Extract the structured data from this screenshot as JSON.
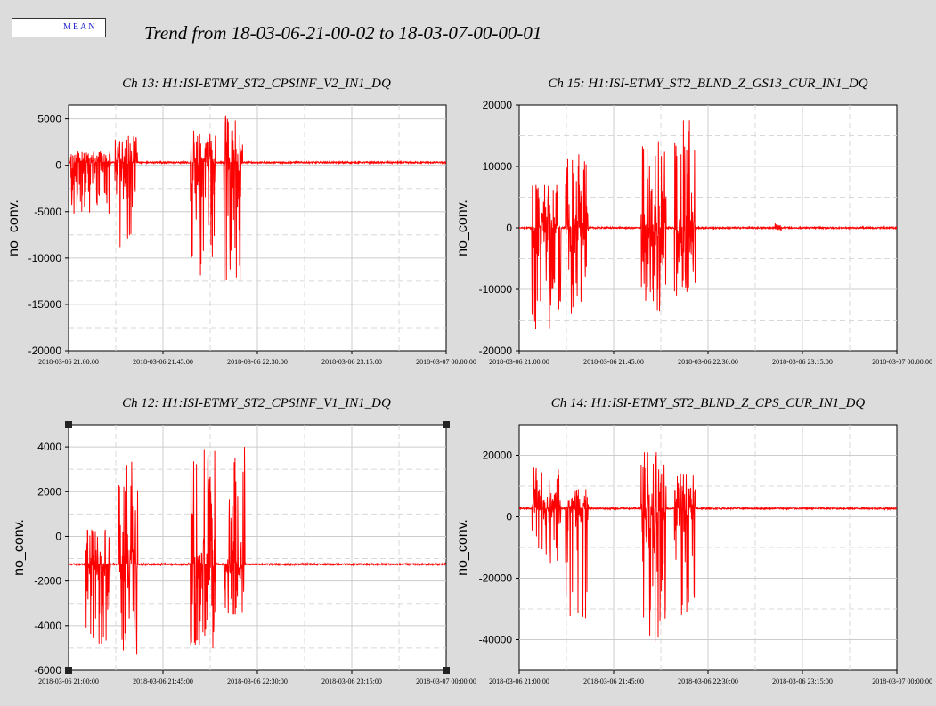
{
  "legend": {
    "label": "MEAN",
    "color": "#ff0000"
  },
  "page_title": "Trend from 18-03-06-21-00-02 to 18-03-07-00-00-01",
  "chart_data": [
    {
      "type": "line",
      "title": "Ch 13: H1:ISI-ETMY_ST2_CPSINF_V2_IN1_DQ",
      "ylabel": "no_conv.",
      "ylim": [
        -20000,
        6500
      ],
      "yticks": [
        5000,
        0,
        -5000,
        -10000,
        -15000,
        -20000
      ],
      "xlim": [
        0,
        180
      ],
      "xtick_labels": [
        "2018-03-06 21:00:00",
        "2018-03-06 21:45:00",
        "2018-03-06 22:30:00",
        "2018-03-06 23:15:00",
        "2018-03-07 00:00:00"
      ],
      "grid": true,
      "series": [
        {
          "color": "#ff0000",
          "baseline": 300,
          "bursts": [
            {
              "t0": 1,
              "t1": 20,
              "dn": -5200,
              "up": 1500
            },
            {
              "t0": 22,
              "t1": 33,
              "dn": -8800,
              "up": 3300
            },
            {
              "t0": 58,
              "t1": 70,
              "dn": -12000,
              "up": 4200
            },
            {
              "t0": 74,
              "t1": 83,
              "dn": -12500,
              "up": 5500
            }
          ]
        }
      ]
    },
    {
      "type": "line",
      "title": "Ch 15: H1:ISI-ETMY_ST2_BLND_Z_GS13_CUR_IN1_DQ",
      "ylabel": "no_conv.",
      "ylim": [
        -20000,
        20000
      ],
      "yticks": [
        20000,
        10000,
        0,
        -10000,
        -20000
      ],
      "xlim": [
        0,
        180
      ],
      "xtick_labels": [
        "2018-03-06 21:00:00",
        "2018-03-06 21:45:00",
        "2018-03-06 22:30:00",
        "2018-03-06 23:15:00",
        "2018-03-07 00:00:00"
      ],
      "grid": true,
      "series": [
        {
          "color": "#ff0000",
          "baseline": 0,
          "bursts": [
            {
              "t0": 6,
              "t1": 20,
              "dn": -16500,
              "up": 7000
            },
            {
              "t0": 22,
              "t1": 33,
              "dn": -14000,
              "up": 12000
            },
            {
              "t0": 58,
              "t1": 70,
              "dn": -13500,
              "up": 14500
            },
            {
              "t0": 74,
              "t1": 84,
              "dn": -11000,
              "up": 17500
            },
            {
              "t0": 122,
              "t1": 125,
              "dn": -400,
              "up": 700
            }
          ]
        }
      ]
    },
    {
      "type": "line",
      "title": "Ch 12: H1:ISI-ETMY_ST2_CPSINF_V1_IN1_DQ",
      "ylabel": "no_conv.",
      "ylim": [
        -6000,
        5000
      ],
      "yticks": [
        4000,
        2000,
        0,
        -2000,
        -4000,
        -6000
      ],
      "xlim": [
        0,
        180
      ],
      "xtick_labels": [
        "2018-03-06 21:00:00",
        "2018-03-06 21:45:00",
        "2018-03-06 22:30:00",
        "2018-03-06 23:15:00",
        "2018-03-07 00:00:00"
      ],
      "grid": true,
      "series": [
        {
          "color": "#ff0000",
          "baseline": -1250,
          "bursts": [
            {
              "t0": 8,
              "t1": 20,
              "dn": -4800,
              "up": 300
            },
            {
              "t0": 24,
              "t1": 33,
              "dn": -5300,
              "up": 3500
            },
            {
              "t0": 58,
              "t1": 70,
              "dn": -5000,
              "up": 4000
            },
            {
              "t0": 74,
              "t1": 84,
              "dn": -3500,
              "up": 4000
            }
          ]
        }
      ]
    },
    {
      "type": "line",
      "title": "Ch 14: H1:ISI-ETMY_ST2_BLND_Z_CPS_CUR_IN1_DQ",
      "ylabel": "no_conv.",
      "ylim": [
        -50000,
        30000
      ],
      "yticks": [
        20000,
        0,
        -20000,
        -40000
      ],
      "xlim": [
        0,
        180
      ],
      "xtick_labels": [
        "2018-03-06 21:00:00",
        "2018-03-06 21:45:00",
        "2018-03-06 22:30:00",
        "2018-03-06 23:15:00",
        "2018-03-07 00:00:00"
      ],
      "grid": true,
      "series": [
        {
          "color": "#ff0000",
          "baseline": 2700,
          "bursts": [
            {
              "t0": 6,
              "t1": 20,
              "dn": -15000,
              "up": 16000
            },
            {
              "t0": 22,
              "t1": 33,
              "dn": -33000,
              "up": 9000
            },
            {
              "t0": 58,
              "t1": 70,
              "dn": -44000,
              "up": 21000
            },
            {
              "t0": 74,
              "t1": 84,
              "dn": -32000,
              "up": 14000
            }
          ]
        }
      ]
    }
  ]
}
